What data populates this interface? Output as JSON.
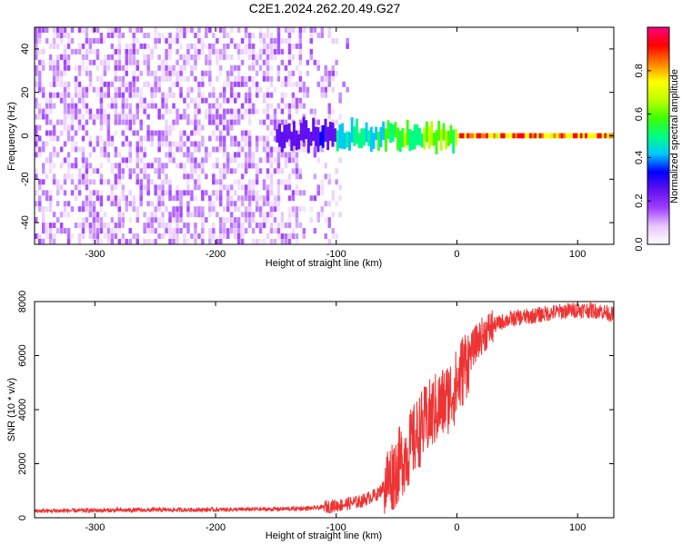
{
  "figure_title": "C2E1.2024.262.20.49.G27",
  "chart_data": [
    {
      "type": "heatmap",
      "title": "",
      "xlabel": "Height of straight line (km)",
      "ylabel": "Frequency (Hz)",
      "xlim": [
        -350,
        130
      ],
      "ylim": [
        -50,
        50
      ],
      "xticks": [
        -300,
        -200,
        -100,
        0,
        100
      ],
      "yticks": [
        -40,
        -20,
        0,
        20,
        40
      ],
      "colorbar": {
        "label": "Normalized spectral amplitude",
        "range": [
          0.0,
          1.0
        ],
        "ticks": [
          "0.0",
          "0.2",
          "0.4",
          "0.6",
          "0.8"
        ],
        "colors": [
          "#ffffff",
          "#e8c8ff",
          "#a040ff",
          "#6010f0",
          "#0000ff",
          "#00c8ff",
          "#00ff80",
          "#40ff00",
          "#c0ff00",
          "#ffff00",
          "#ff8000",
          "#ff0000",
          "#ff0080"
        ]
      },
      "regions": [
        {
          "x_range": [
            -350,
            -150
          ],
          "description": "broadband noise",
          "amplitude": 0.12
        },
        {
          "x_range": [
            -150,
            -100
          ],
          "freq_hz": 0,
          "amplitude": 0.3
        },
        {
          "x_range": [
            -100,
            -60
          ],
          "freq_hz": 0,
          "amplitude": 0.55
        },
        {
          "x_range": [
            -60,
            0
          ],
          "freq_hz": 0,
          "amplitude": 0.7
        },
        {
          "x_range": [
            0,
            130
          ],
          "freq_hz": 0,
          "amplitude": 0.95
        }
      ]
    },
    {
      "type": "line",
      "title": "",
      "xlabel": "Height of straight line (km)",
      "ylabel": "SNR (10 * v/v)",
      "xlim": [
        -350,
        130
      ],
      "ylim": [
        0,
        8000
      ],
      "xticks": [
        -300,
        -200,
        -100,
        0,
        100
      ],
      "yticks": [
        0,
        2000,
        4000,
        6000,
        8000
      ],
      "series": [
        {
          "color": "#ee3333",
          "x": [
            -350,
            -300,
            -250,
            -200,
            -150,
            -120,
            -100,
            -80,
            -70,
            -65,
            -60,
            -55,
            -50,
            -45,
            -40,
            -35,
            -30,
            -25,
            -20,
            -15,
            -10,
            -5,
            0,
            5,
            10,
            15,
            20,
            30,
            40,
            50,
            60,
            80,
            100,
            120,
            130
          ],
          "y": [
            250,
            270,
            290,
            300,
            320,
            350,
            450,
            600,
            800,
            900,
            1200,
            1500,
            1800,
            2200,
            2500,
            2900,
            3300,
            3600,
            3900,
            4100,
            4300,
            4600,
            4900,
            5500,
            6000,
            6400,
            6700,
            7100,
            7300,
            7400,
            7450,
            7600,
            7700,
            7650,
            7500
          ]
        }
      ]
    }
  ]
}
